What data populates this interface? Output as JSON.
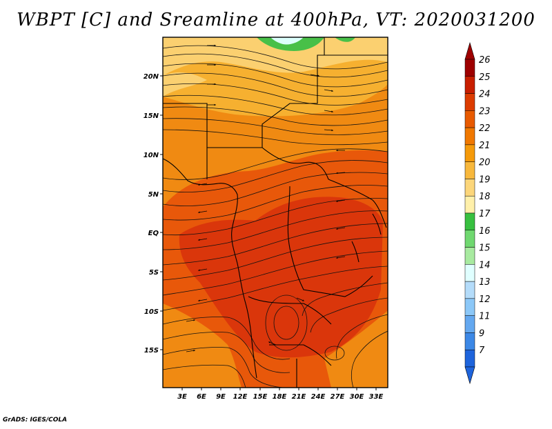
{
  "title": "WBPT [C] and Sreamline at 400hPa, VT: 2020031200",
  "credit": "GrADS: IGES/COLA",
  "latitude_labels": [
    "20N",
    "15N",
    "10N",
    "5N",
    "EQ",
    "5S",
    "10S",
    "15S"
  ],
  "longitude_labels": [
    "3E",
    "6E",
    "9E",
    "12E",
    "15E",
    "18E",
    "21E",
    "24E",
    "27E",
    "30E",
    "33E"
  ],
  "colorbar": {
    "labels": [
      "26",
      "25",
      "24",
      "23",
      "22",
      "21",
      "20",
      "19",
      "18",
      "17",
      "16",
      "15",
      "14",
      "13",
      "12",
      "11",
      "9",
      "7"
    ],
    "colors": [
      "#9e0000",
      "#c81e00",
      "#dc3c00",
      "#e85a00",
      "#f07800",
      "#f59a0a",
      "#f8b83c",
      "#fcd67a",
      "#fff0aa",
      "#38c040",
      "#70d870",
      "#a8eaa0",
      "#e0ffff",
      "#b4dcfa",
      "#8cc8f8",
      "#64a8f0",
      "#3c88e6",
      "#1e64dc"
    ]
  },
  "colors": {
    "deep_red": "#d7300c",
    "orange_red": "#e8580a",
    "orange": "#f08a12",
    "light_orange": "#f6b030",
    "yellow": "#fbd070",
    "green": "#48c048",
    "cyan": "#dcfffc"
  }
}
